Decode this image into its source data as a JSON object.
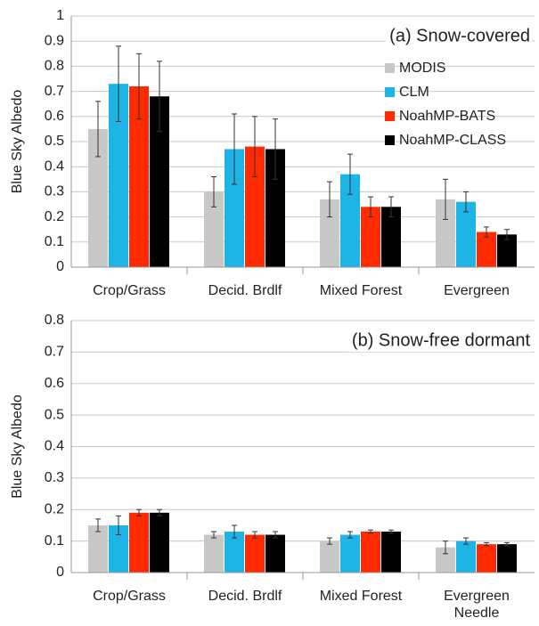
{
  "chart_data": [
    {
      "type": "bar",
      "annotation": "(a) Snow-covered",
      "ylabel": "Blue Sky Albedo",
      "categories": [
        "Crop/Grass",
        "Decid. Brdlf",
        "Mixed Forest",
        "Evergreen"
      ],
      "series": [
        {
          "name": "MODIS",
          "color": "#c8c8c8",
          "values": [
            0.55,
            0.3,
            0.27,
            0.27
          ],
          "errors": [
            0.11,
            0.06,
            0.07,
            0.08
          ]
        },
        {
          "name": "CLM",
          "color": "#1eb4e6",
          "values": [
            0.73,
            0.47,
            0.37,
            0.26
          ],
          "errors": [
            0.15,
            0.14,
            0.08,
            0.04
          ]
        },
        {
          "name": "NoahMP-BATS",
          "color": "#ff2a00",
          "values": [
            0.72,
            0.48,
            0.24,
            0.14
          ],
          "errors": [
            0.13,
            0.12,
            0.04,
            0.02
          ]
        },
        {
          "name": "NoahMP-CLASS",
          "color": "#000000",
          "values": [
            0.68,
            0.47,
            0.24,
            0.13
          ],
          "errors": [
            0.14,
            0.12,
            0.04,
            0.02
          ]
        }
      ],
      "ylim": [
        0,
        1
      ],
      "yticks": [
        0,
        0.1,
        0.2,
        0.3,
        0.4,
        0.5,
        0.6,
        0.7,
        0.8,
        0.9,
        1
      ],
      "grid": true,
      "legend": "upper right"
    },
    {
      "type": "bar",
      "annotation": "(b) Snow-free dormant",
      "ylabel": "Blue Sky Albedo",
      "categories": [
        "Crop/Grass",
        "Decid. Brdlf",
        "Mixed Forest",
        "Evergreen\nNeedle"
      ],
      "series": [
        {
          "color": "#c8c8c8",
          "values": [
            0.15,
            0.12,
            0.1,
            0.08
          ],
          "errors": [
            0.02,
            0.01,
            0.01,
            0.02
          ]
        },
        {
          "color": "#1eb4e6",
          "values": [
            0.15,
            0.13,
            0.12,
            0.1
          ],
          "errors": [
            0.03,
            0.02,
            0.01,
            0.01
          ]
        },
        {
          "color": "#ff2a00",
          "values": [
            0.19,
            0.12,
            0.13,
            0.09
          ],
          "errors": [
            0.01,
            0.01,
            0.005,
            0.005
          ]
        },
        {
          "color": "#000000",
          "values": [
            0.19,
            0.12,
            0.13,
            0.09
          ],
          "errors": [
            0.01,
            0.01,
            0.005,
            0.005
          ]
        }
      ],
      "ylim": [
        0,
        0.8
      ],
      "yticks": [
        0,
        0.1,
        0.2,
        0.3,
        0.4,
        0.5,
        0.6,
        0.7,
        0.8
      ],
      "grid": true
    }
  ]
}
